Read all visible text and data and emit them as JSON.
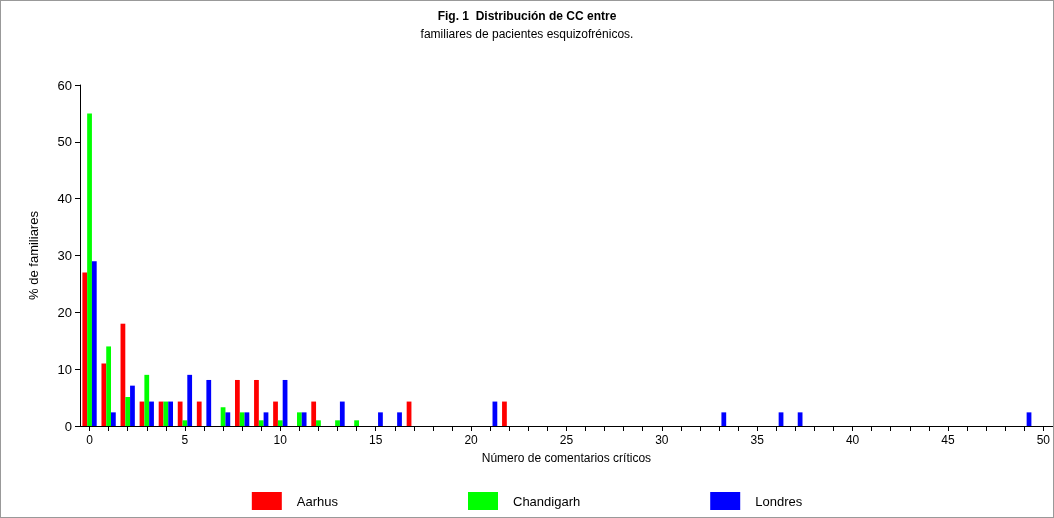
{
  "chart_data": {
    "type": "bar",
    "title": "Fig. 1  Distribución de CC entre",
    "subtitle": "familiares de pacientes esquizofrénicos.",
    "xlabel": "Número de comentarios críticos",
    "ylabel": "% de familiares",
    "categories": [
      "0",
      null,
      null,
      null,
      null,
      "5",
      null,
      null,
      null,
      null,
      "10",
      null,
      null,
      null,
      null,
      "15",
      null,
      null,
      null,
      null,
      "20",
      null,
      null,
      null,
      null,
      "25",
      null,
      null,
      null,
      null,
      "30",
      null,
      null,
      null,
      null,
      "35",
      null,
      null,
      null,
      null,
      "40",
      null,
      null,
      null,
      null,
      "45",
      null,
      null,
      null,
      null,
      "50"
    ],
    "series": [
      {
        "name": "Aarhus",
        "color": "#ff0000",
        "values": [
          27,
          11,
          18,
          4.3,
          4.3,
          4.3,
          4.3,
          0,
          8.1,
          8.1,
          4.3,
          0,
          4.3,
          0,
          0,
          0,
          0,
          4.3,
          0,
          0,
          0,
          0,
          4.3,
          0,
          0,
          0,
          0,
          0,
          0,
          0,
          0,
          0,
          0,
          0,
          0,
          0,
          0,
          0,
          0,
          0,
          0,
          0,
          0,
          0,
          0,
          0,
          0,
          0,
          0,
          0,
          0
        ]
      },
      {
        "name": "Chandigarh",
        "color": "#00ff00",
        "values": [
          55,
          14,
          5.1,
          9,
          4.3,
          1,
          0,
          3.3,
          2.4,
          1,
          1,
          2.4,
          1,
          1,
          1,
          0,
          0,
          0,
          0,
          0,
          0,
          0,
          0,
          0,
          0,
          0,
          0,
          0,
          0,
          0,
          0,
          0,
          0,
          0,
          0,
          0,
          0,
          0,
          0,
          0,
          0,
          0,
          0,
          0,
          0,
          0,
          0,
          0,
          0,
          0,
          0
        ]
      },
      {
        "name": "Londres",
        "color": "#0000ff",
        "values": [
          29,
          2.4,
          7.1,
          4.3,
          4.3,
          9,
          8.1,
          2.4,
          2.4,
          2.4,
          8.1,
          2.4,
          0,
          4.3,
          0,
          2.4,
          2.4,
          0,
          0,
          0,
          0,
          4.3,
          0,
          0,
          0,
          0,
          0,
          0,
          0,
          0,
          0,
          0,
          0,
          2.4,
          0,
          0,
          2.4,
          2.4,
          0,
          0,
          0,
          0,
          0,
          0,
          0,
          0,
          0,
          0,
          0,
          2.4,
          0
        ]
      }
    ],
    "ylim": [
      0,
      60
    ],
    "yticks": [
      0,
      10,
      20,
      30,
      40,
      50,
      60
    ],
    "grid": false,
    "legend": "bottom"
  }
}
